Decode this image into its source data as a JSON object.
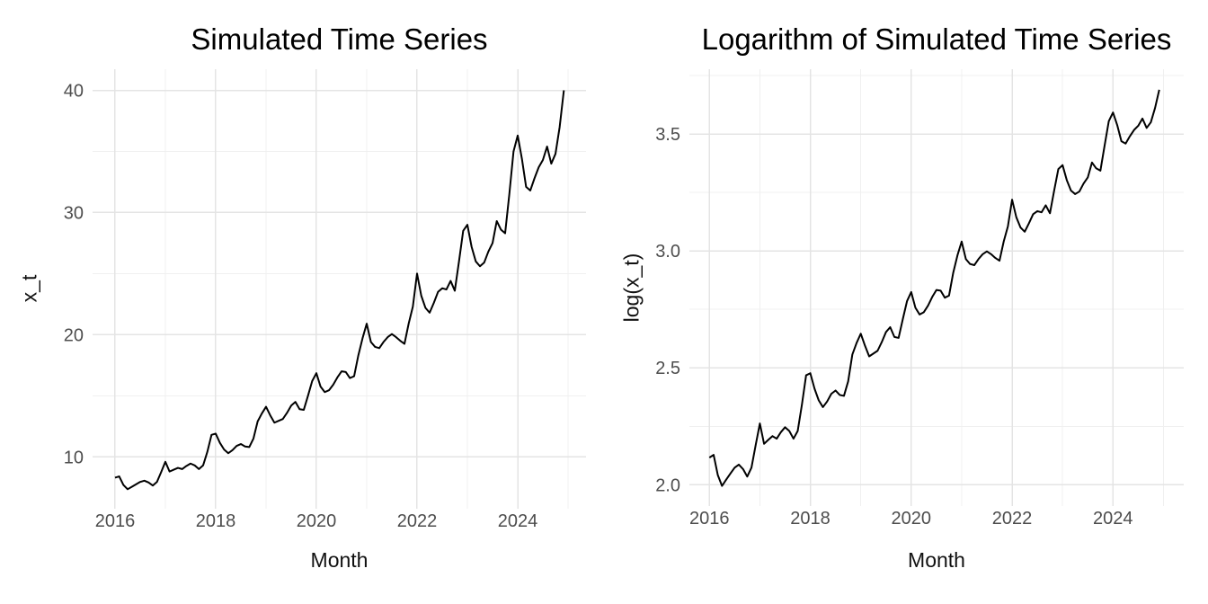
{
  "figure": {
    "background": "#ffffff",
    "series_color": "#000000",
    "grid_major_color": "#e4e4e4",
    "grid_minor_color": "#f0f0f0",
    "tick_label_color": "#4d4d4d",
    "title_color": "#000000"
  },
  "chart_data": [
    {
      "type": "line",
      "title": "Simulated Time Series",
      "xlabel": "Month",
      "ylabel": "x_t",
      "x_start": "2016-01",
      "x_end": "2024-12",
      "frequency": "monthly",
      "xlim": [
        2015.554,
        2025.357
      ],
      "ylim": [
        5.755,
        41.73
      ],
      "x_major_ticks": [
        2016,
        2018,
        2020,
        2022,
        2024
      ],
      "x_tick_labels": [
        "2016",
        "2018",
        "2020",
        "2022",
        "2024"
      ],
      "x_minor_ticks": [
        2017,
        2019,
        2021,
        2023,
        2025
      ],
      "y_major_ticks": [
        10,
        20,
        30,
        40
      ],
      "y_tick_labels": [
        "10",
        "20",
        "30",
        "40"
      ],
      "y_minor_ticks": [
        15,
        25,
        35
      ],
      "grid": true,
      "legend": "none",
      "values": [
        8.3,
        8.4,
        7.7,
        7.35,
        7.55,
        7.75,
        7.95,
        8.05,
        7.9,
        7.65,
        7.95,
        8.75,
        9.6,
        8.8,
        8.95,
        9.1,
        9.0,
        9.25,
        9.45,
        9.3,
        9.0,
        9.3,
        10.4,
        11.8,
        11.9,
        11.15,
        10.6,
        10.3,
        10.55,
        10.9,
        11.05,
        10.85,
        10.8,
        11.5,
        12.9,
        13.55,
        14.1,
        13.4,
        12.8,
        12.95,
        13.1,
        13.6,
        14.2,
        14.5,
        13.9,
        13.85,
        15.0,
        16.2,
        16.85,
        15.75,
        15.3,
        15.45,
        15.9,
        16.5,
        17.0,
        16.95,
        16.45,
        16.6,
        18.3,
        19.7,
        20.9,
        19.4,
        19.0,
        18.9,
        19.4,
        19.8,
        20.05,
        19.8,
        19.5,
        19.25,
        20.9,
        22.3,
        25.0,
        23.2,
        22.2,
        21.8,
        22.6,
        23.5,
        23.8,
        23.7,
        24.4,
        23.6,
        26.0,
        28.5,
        29.0,
        27.2,
        26.0,
        25.6,
        25.9,
        26.8,
        27.5,
        29.3,
        28.6,
        28.3,
        31.5,
        35.0,
        36.3,
        34.4,
        32.1,
        31.8,
        32.8,
        33.7,
        34.3,
        35.4,
        34.0,
        34.8,
        37.0,
        40.0
      ]
    },
    {
      "type": "line",
      "title": "Logarithm of Simulated Time Series",
      "xlabel": "Month",
      "ylabel": "log(x_t)",
      "x_start": "2016-01",
      "x_end": "2024-12",
      "frequency": "monthly",
      "xlim": [
        2015.603,
        2025.402
      ],
      "ylim": [
        1.909,
        3.777
      ],
      "x_major_ticks": [
        2016,
        2018,
        2020,
        2022,
        2024
      ],
      "x_tick_labels": [
        "2016",
        "2018",
        "2020",
        "2022",
        "2024"
      ],
      "x_minor_ticks": [
        2017,
        2019,
        2021,
        2023,
        2025
      ],
      "y_major_ticks": [
        2.0,
        2.5,
        3.0,
        3.5
      ],
      "y_tick_labels": [
        "2.0",
        "2.5",
        "3.0",
        "3.5"
      ],
      "y_minor_ticks": [
        2.25,
        2.75,
        3.25,
        3.75
      ],
      "grid": true,
      "legend": "none",
      "values": [
        2.116,
        2.128,
        2.041,
        1.995,
        2.022,
        2.048,
        2.073,
        2.086,
        2.067,
        2.035,
        2.073,
        2.169,
        2.262,
        2.175,
        2.192,
        2.208,
        2.197,
        2.225,
        2.246,
        2.23,
        2.197,
        2.23,
        2.342,
        2.468,
        2.477,
        2.411,
        2.361,
        2.332,
        2.356,
        2.389,
        2.403,
        2.384,
        2.38,
        2.442,
        2.557,
        2.606,
        2.646,
        2.595,
        2.549,
        2.561,
        2.573,
        2.61,
        2.653,
        2.674,
        2.632,
        2.628,
        2.708,
        2.785,
        2.824,
        2.757,
        2.728,
        2.738,
        2.766,
        2.803,
        2.833,
        2.83,
        2.8,
        2.809,
        2.907,
        2.981,
        3.04,
        2.965,
        2.944,
        2.939,
        2.965,
        2.986,
        2.998,
        2.986,
        2.97,
        2.958,
        3.04,
        3.105,
        3.219,
        3.144,
        3.1,
        3.082,
        3.118,
        3.157,
        3.17,
        3.165,
        3.195,
        3.161,
        3.258,
        3.35,
        3.367,
        3.303,
        3.258,
        3.243,
        3.254,
        3.288,
        3.314,
        3.378,
        3.353,
        3.343,
        3.45,
        3.555,
        3.592,
        3.538,
        3.469,
        3.459,
        3.49,
        3.517,
        3.535,
        3.566,
        3.526,
        3.55,
        3.611,
        3.689
      ]
    }
  ]
}
